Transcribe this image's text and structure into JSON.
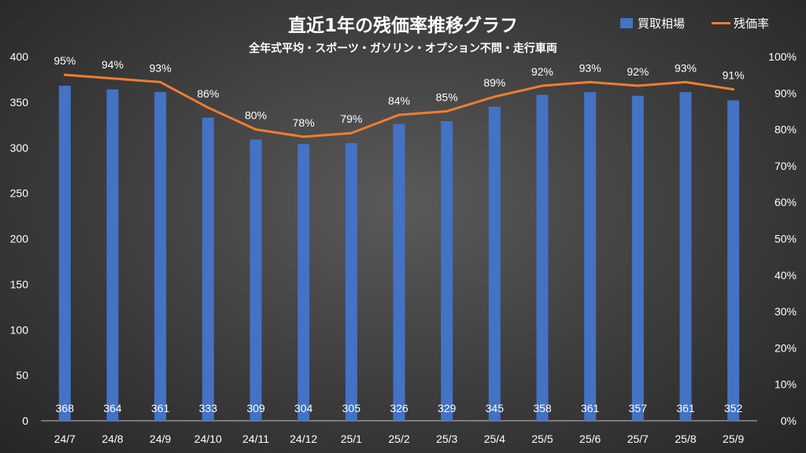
{
  "chart_data": {
    "type": "bar",
    "title": "直近1年の残価率推移グラフ",
    "subtitle": "全年式平均・スポーツ・ガソリン・オプション不問・走行車両",
    "categories": [
      "24/7",
      "24/8",
      "24/9",
      "24/10",
      "24/11",
      "24/12",
      "25/1",
      "25/2",
      "25/3",
      "25/4",
      "25/5",
      "25/6",
      "25/7",
      "25/8",
      "25/9"
    ],
    "series": [
      {
        "name": "買取相場",
        "type": "bar",
        "axis": "left",
        "color": "#4472c4",
        "values": [
          368,
          364,
          361,
          333,
          309,
          304,
          305,
          326,
          329,
          345,
          358,
          361,
          357,
          361,
          352
        ],
        "labels": [
          "368",
          "364",
          "361",
          "333",
          "309",
          "304",
          "305",
          "326",
          "329",
          "345",
          "358",
          "361",
          "357",
          "361",
          "352"
        ]
      },
      {
        "name": "残価率",
        "type": "line",
        "axis": "right",
        "color": "#ed7d31",
        "values": [
          95,
          94,
          93,
          86,
          80,
          78,
          79,
          84,
          85,
          89,
          92,
          93,
          92,
          93,
          91
        ],
        "labels": [
          "95%",
          "94%",
          "93%",
          "86%",
          "80%",
          "78%",
          "79%",
          "84%",
          "85%",
          "89%",
          "92%",
          "93%",
          "92%",
          "93%",
          "91%"
        ]
      }
    ],
    "ylim": [
      0,
      400
    ],
    "y_ticks": [
      "0",
      "50",
      "100",
      "150",
      "200",
      "250",
      "300",
      "350",
      "400"
    ],
    "y2lim": [
      0,
      100
    ],
    "y2_ticks": [
      "0%",
      "10%",
      "20%",
      "30%",
      "40%",
      "50%",
      "60%",
      "70%",
      "80%",
      "90%",
      "100%"
    ],
    "grid": false,
    "legend": "top-right"
  }
}
